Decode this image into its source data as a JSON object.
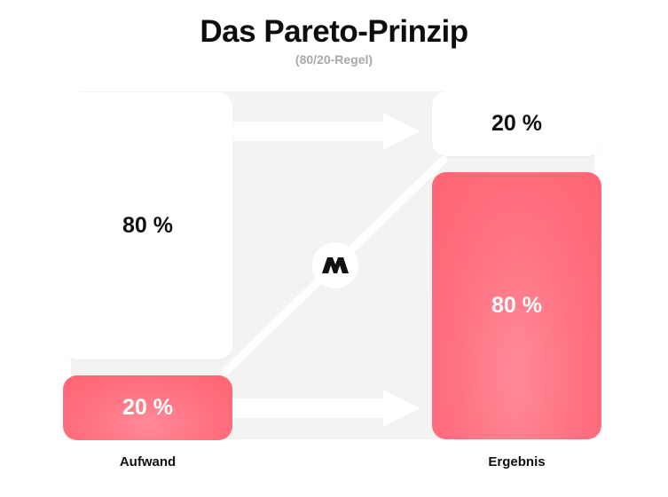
{
  "title": "Das Pareto-Prinzip",
  "subtitle": "(80/20-Regel)",
  "left": {
    "label": "Aufwand",
    "upper_value": "80 %",
    "lower_value": "20 %"
  },
  "right": {
    "label": "Ergebnis",
    "upper_value": "20 %",
    "lower_value": "80 %"
  },
  "colors": {
    "accent": "#ff6b7b",
    "panel": "#f3f3f3",
    "text": "#111111",
    "subtitle": "#a9a9a9"
  },
  "icons": {
    "center_logo": "m-logo-icon"
  }
}
